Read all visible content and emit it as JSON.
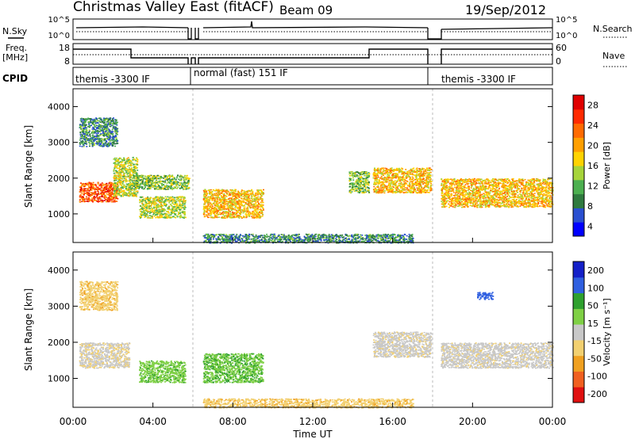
{
  "header": {
    "station": "Christmas Valley East (fitACF)",
    "beam": "Beam 09",
    "date": "19/Sep/2012"
  },
  "legend_left": {
    "nsky": "N.Sky",
    "freq_line1": "Freq.",
    "freq_line2": "[MHz]",
    "cpid": "CPID"
  },
  "legend_right": {
    "nsearch": "N.Search",
    "nave": "Nave"
  },
  "strip_ticks": {
    "noise_left": [
      "10^5",
      "10^0"
    ],
    "noise_right": [
      "10^5",
      "10^0"
    ],
    "freq_left": [
      "18",
      "8"
    ],
    "freq_right": [
      "60",
      "0"
    ]
  },
  "cpid_labels": [
    "themis -3300 IF",
    "normal (fast) 151 IF",
    "themis -3300 IF"
  ],
  "colorbars": {
    "power": {
      "label": "Power [dB]",
      "ticks": [
        "28",
        "24",
        "20",
        "16",
        "12",
        "8",
        "4"
      ]
    },
    "velocity": {
      "label": "Velocity [m s⁻¹]",
      "ticks": [
        "200",
        "100",
        "50",
        "15",
        "-15",
        "-50",
        "-100",
        "-200"
      ]
    }
  },
  "colors": {
    "power_scale": [
      "#0000ff",
      "#2a4fd0",
      "#2f7a3f",
      "#4caf50",
      "#a6d43a",
      "#ffd300",
      "#ff9f00",
      "#ff6a00",
      "#ff2a00",
      "#e00000"
    ],
    "velocity_scale": [
      "#1420c8",
      "#2f5fe0",
      "#2ea02e",
      "#7fd045",
      "#c8c8c8",
      "#f2d070",
      "#f0a020",
      "#f06020",
      "#e01010"
    ]
  },
  "chart_data": [
    {
      "type": "heatmap",
      "panel": "power",
      "ylabel": "Slant Range [km]",
      "yticks": [
        "1000",
        "2000",
        "3000",
        "4000"
      ],
      "ylim": [
        200,
        4500
      ],
      "xlim": [
        "00:00",
        "24:00"
      ],
      "scatter_bands": [
        {
          "t0": 0.3,
          "t1": 2.2,
          "r0": 1350,
          "r1": 1900,
          "level": 24
        },
        {
          "t0": 0.3,
          "t1": 2.2,
          "r0": 2900,
          "r1": 3700,
          "level": 8
        },
        {
          "t0": 2.0,
          "t1": 3.2,
          "r0": 1500,
          "r1": 2600,
          "level": 14
        },
        {
          "t0": 3.0,
          "t1": 5.8,
          "r0": 1700,
          "r1": 2100,
          "level": 12
        },
        {
          "t0": 3.3,
          "t1": 5.6,
          "r0": 900,
          "r1": 1500,
          "level": 14
        },
        {
          "t0": 6.5,
          "t1": 9.5,
          "r0": 900,
          "r1": 1700,
          "level": 18
        },
        {
          "t0": 13.8,
          "t1": 14.8,
          "r0": 1600,
          "r1": 2200,
          "level": 12
        },
        {
          "t0": 15.0,
          "t1": 17.9,
          "r0": 1600,
          "r1": 2300,
          "level": 18
        },
        {
          "t0": 18.4,
          "t1": 24.0,
          "r0": 1200,
          "r1": 2000,
          "level": 18
        },
        {
          "t0": 6.5,
          "t1": 17.0,
          "r0": 200,
          "r1": 450,
          "level": 8
        }
      ]
    },
    {
      "type": "heatmap",
      "panel": "velocity",
      "ylabel": "Slant Range [km]",
      "xlabel": "Time UT",
      "yticks": [
        "1000",
        "2000",
        "3000",
        "4000"
      ],
      "xticks": [
        "00:00",
        "04:00",
        "08:00",
        "12:00",
        "16:00",
        "20:00",
        "00:00"
      ],
      "ylim": [
        200,
        4500
      ],
      "xlim": [
        "00:00",
        "24:00"
      ],
      "scatter_bands": [
        {
          "t0": 0.3,
          "t1": 2.8,
          "r0": 1300,
          "r1": 2000,
          "velocity": -10
        },
        {
          "t0": 0.3,
          "t1": 2.2,
          "r0": 2900,
          "r1": 3700,
          "velocity": -40
        },
        {
          "t0": 3.3,
          "t1": 5.6,
          "r0": 900,
          "r1": 1500,
          "velocity": 40
        },
        {
          "t0": 6.5,
          "t1": 9.5,
          "r0": 900,
          "r1": 1700,
          "velocity": 45
        },
        {
          "t0": 15.0,
          "t1": 17.9,
          "r0": 1600,
          "r1": 2300,
          "velocity": -5
        },
        {
          "t0": 18.4,
          "t1": 24.0,
          "r0": 1300,
          "r1": 2000,
          "velocity": -5
        },
        {
          "t0": 20.2,
          "t1": 21.0,
          "r0": 3200,
          "r1": 3400,
          "velocity": 180
        },
        {
          "t0": 6.5,
          "t1": 17.0,
          "r0": 200,
          "r1": 450,
          "velocity": -40
        }
      ]
    }
  ]
}
